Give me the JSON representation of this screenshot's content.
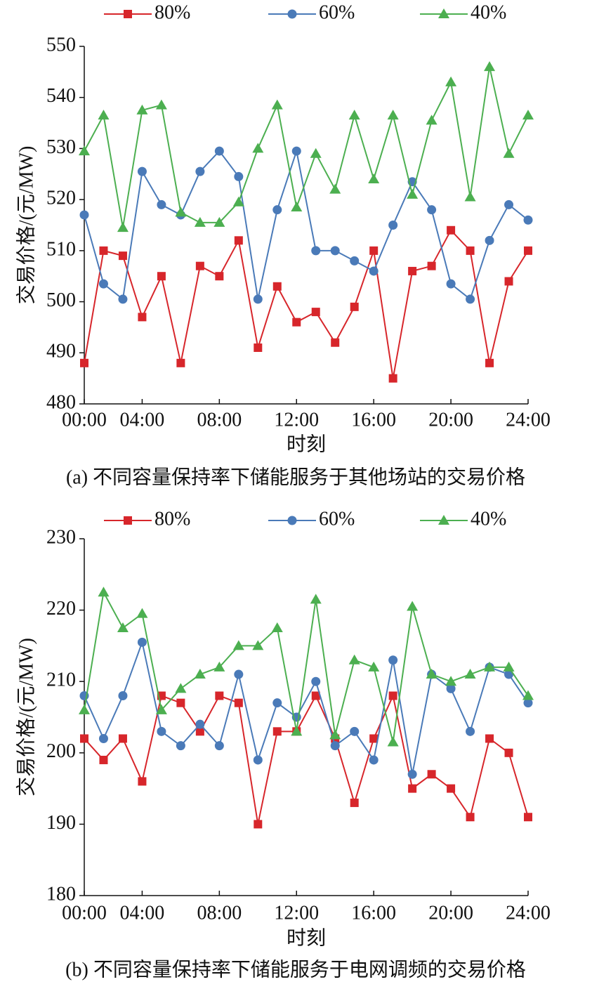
{
  "chart_data": [
    {
      "type": "line",
      "title": "(a) 不同容量保持率下储能服务于其他场站的交易价格",
      "x_label": "时刻",
      "y_label": "交易价格/(元/MW)",
      "x": [
        0,
        1,
        2,
        3,
        4,
        5,
        6,
        7,
        8,
        9,
        10,
        11,
        12,
        13,
        14,
        15,
        16,
        17,
        18,
        19,
        20,
        21,
        22,
        23
      ],
      "xlim": [
        0,
        23
      ],
      "xticks": [
        {
          "value": 0,
          "label": "00:00"
        },
        {
          "value": 3,
          "label": "04:00"
        },
        {
          "value": 7,
          "label": "08:00"
        },
        {
          "value": 11,
          "label": "12:00"
        },
        {
          "value": 15,
          "label": "16:00"
        },
        {
          "value": 19,
          "label": "20:00"
        },
        {
          "value": 23,
          "label": "24:00"
        }
      ],
      "ylim": [
        480,
        550
      ],
      "yticks": [
        480,
        490,
        500,
        510,
        520,
        530,
        540,
        550
      ],
      "legend": "top",
      "series": [
        {
          "name": "80%",
          "color": "#d7262b",
          "marker": "square",
          "values": [
            488,
            510,
            509,
            497,
            505,
            488,
            507,
            505,
            512,
            491,
            503,
            496,
            498,
            492,
            499,
            510,
            485,
            506,
            507,
            514,
            510,
            488,
            504,
            510
          ]
        },
        {
          "name": "60%",
          "color": "#4a7ab8",
          "marker": "circle",
          "values": [
            517,
            503.5,
            500.5,
            525.5,
            519,
            517,
            525.5,
            529.5,
            524.5,
            500.5,
            518,
            529.5,
            510,
            510,
            508,
            506,
            515,
            523.5,
            518,
            503.5,
            500.5,
            512,
            519,
            516
          ]
        },
        {
          "name": "40%",
          "color": "#4caf50",
          "marker": "triangle",
          "values": [
            529.5,
            536.5,
            514.5,
            537.5,
            538.5,
            517.5,
            515.5,
            515.5,
            519.5,
            530,
            538.5,
            518.5,
            529,
            522,
            536.5,
            524,
            536.5,
            521,
            535.5,
            543,
            520.5,
            546,
            529,
            536.5
          ]
        }
      ]
    },
    {
      "type": "line",
      "title": "(b) 不同容量保持率下储能服务于电网调频的交易价格",
      "x_label": "时刻",
      "y_label": "交易价格/(元/MW)",
      "x": [
        0,
        1,
        2,
        3,
        4,
        5,
        6,
        7,
        8,
        9,
        10,
        11,
        12,
        13,
        14,
        15,
        16,
        17,
        18,
        19,
        20,
        21,
        22,
        23
      ],
      "xlim": [
        0,
        23
      ],
      "xticks": [
        {
          "value": 0,
          "label": "00:00"
        },
        {
          "value": 3,
          "label": "04:00"
        },
        {
          "value": 7,
          "label": "08:00"
        },
        {
          "value": 11,
          "label": "12:00"
        },
        {
          "value": 15,
          "label": "16:00"
        },
        {
          "value": 19,
          "label": "20:00"
        },
        {
          "value": 23,
          "label": "24:00"
        }
      ],
      "ylim": [
        180,
        230
      ],
      "yticks": [
        180,
        190,
        200,
        210,
        220,
        230
      ],
      "legend": "top",
      "series": [
        {
          "name": "80%",
          "color": "#d7262b",
          "marker": "square",
          "values": [
            202,
            199,
            202,
            196,
            208,
            207,
            203,
            208,
            207,
            190,
            203,
            203,
            208,
            202,
            193,
            202,
            208,
            195,
            197,
            195,
            191,
            202,
            200,
            191
          ]
        },
        {
          "name": "60%",
          "color": "#4a7ab8",
          "marker": "circle",
          "values": [
            208,
            202,
            208,
            215.5,
            203,
            201,
            204,
            201,
            211,
            199,
            207,
            205,
            210,
            201,
            203,
            199,
            213,
            197,
            211,
            209,
            203,
            212,
            211,
            207
          ]
        },
        {
          "name": "40%",
          "color": "#4caf50",
          "marker": "triangle",
          "values": [
            206,
            222.5,
            217.5,
            219.5,
            206,
            209,
            211,
            212,
            215,
            215,
            217.5,
            203,
            221.5,
            202.5,
            213,
            212,
            201.5,
            220.5,
            211,
            210,
            211,
            212,
            212,
            208
          ]
        }
      ]
    }
  ]
}
